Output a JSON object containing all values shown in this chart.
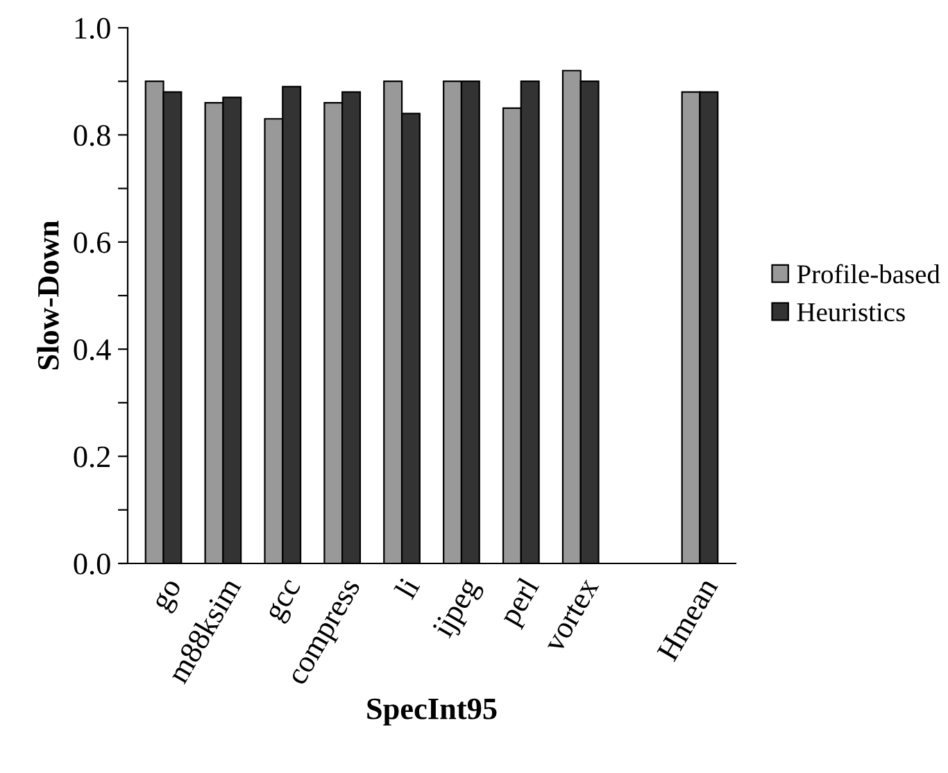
{
  "chart_data": {
    "type": "bar",
    "xlabel": "SpecInt95",
    "ylabel": "Slow-Down",
    "categories": [
      "go",
      "m88ksim",
      "gcc",
      "compress",
      "li",
      "ijpeg",
      "perl",
      "vortex",
      null,
      "Hmean"
    ],
    "series": [
      {
        "name": "Profile-based",
        "color": "#999999",
        "values": [
          0.9,
          0.86,
          0.83,
          0.86,
          0.9,
          0.9,
          0.85,
          0.92,
          null,
          0.88
        ]
      },
      {
        "name": "Heuristics",
        "color": "#333333",
        "values": [
          0.88,
          0.87,
          0.89,
          0.88,
          0.84,
          0.9,
          0.9,
          0.9,
          null,
          0.88
        ]
      }
    ],
    "ylim": [
      0,
      1.0
    ],
    "yticks": [
      {
        "value": 0,
        "label": "0.0"
      },
      {
        "value": 0.1,
        "label": null
      },
      {
        "value": 0.2,
        "label": "0.2"
      },
      {
        "value": 0.3,
        "label": null
      },
      {
        "value": 0.4,
        "label": "0.4"
      },
      {
        "value": 0.5,
        "label": null
      },
      {
        "value": 0.6,
        "label": "0.6"
      },
      {
        "value": 0.7,
        "label": null
      },
      {
        "value": 0.8,
        "label": "0.8"
      },
      {
        "value": 0.9,
        "label": null
      },
      {
        "value": 1.0,
        "label": "1.0"
      }
    ],
    "grid": false,
    "legend": "right"
  }
}
